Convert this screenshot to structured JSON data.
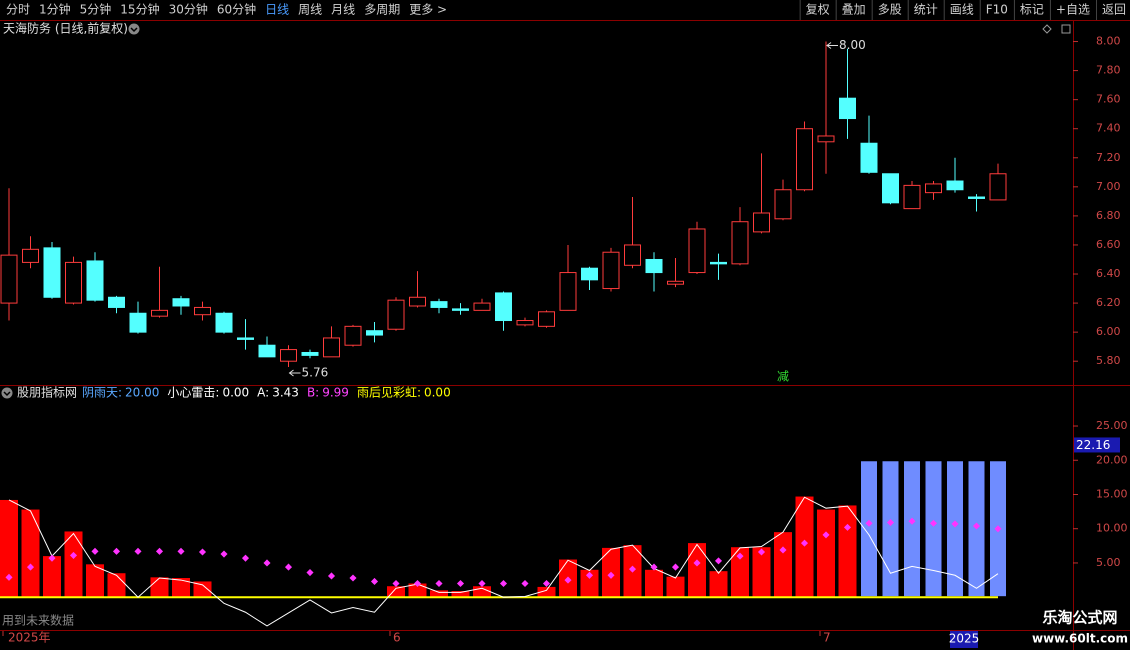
{
  "toolbar": {
    "left": [
      "分时",
      "1分钟",
      "5分钟",
      "15分钟",
      "30分钟",
      "60分钟",
      "日线",
      "周线",
      "月线",
      "多周期",
      "更多 >"
    ],
    "active_index": 6,
    "right": [
      "复权",
      "叠加",
      "多股",
      "统计",
      "画线",
      "F10",
      "标记",
      "+自选",
      "返回"
    ]
  },
  "stock_title": "天海防务 (日线,前复权)",
  "signal": "减",
  "indicator_title": "股朋指标网",
  "indicator_legend": [
    {
      "label": "阴雨天:",
      "value": "20.00",
      "color": "#5aa8ff"
    },
    {
      "label": "小心雷击:",
      "value": "0.00",
      "color": "#ffffff"
    },
    {
      "label": "A:",
      "value": "3.43",
      "color": "#ffffff"
    },
    {
      "label": "B:",
      "value": "9.99",
      "color": "#ff44ff"
    },
    {
      "label": "雨后见彩虹:",
      "value": "0.00",
      "color": "#ffff00"
    }
  ],
  "future_note": "用到未来数据",
  "cursor_date": "2025",
  "watermark": {
    "name": "乐淘公式网",
    "url": "www.60lt.com"
  },
  "chart_data": [
    {
      "type": "candlestick",
      "up_color": "#ff3c3c",
      "down_color": "#54ffff",
      "categories": [
        "2025年",
        null,
        null,
        null,
        null,
        null,
        null,
        null,
        null,
        null,
        null,
        null,
        null,
        null,
        null,
        null,
        null,
        null,
        "6",
        null,
        null,
        null,
        null,
        null,
        null,
        null,
        null,
        null,
        null,
        null,
        null,
        null,
        null,
        null,
        null,
        null,
        null,
        null,
        "7",
        null,
        null,
        null,
        null,
        null,
        null,
        null,
        null
      ],
      "open": [
        6.2,
        6.48,
        6.58,
        6.2,
        6.49,
        6.24,
        6.13,
        6.11,
        6.23,
        6.12,
        6.13,
        5.96,
        5.91,
        5.8,
        5.86,
        5.83,
        5.91,
        6.01,
        6.02,
        6.18,
        6.21,
        6.16,
        6.15,
        6.27,
        6.05,
        6.04,
        6.15,
        6.44,
        6.3,
        6.46,
        6.5,
        6.33,
        6.41,
        6.48,
        6.47,
        6.69,
        6.78,
        6.98,
        7.31,
        7.61,
        7.3,
        7.09,
        6.85,
        6.96,
        7.04,
        6.93,
        6.91
      ],
      "high": [
        6.99,
        6.66,
        6.62,
        6.52,
        6.55,
        6.25,
        6.21,
        6.45,
        6.25,
        6.21,
        6.14,
        6.09,
        5.97,
        5.91,
        5.88,
        6.04,
        6.05,
        6.07,
        6.24,
        6.42,
        6.23,
        6.2,
        6.23,
        6.28,
        6.1,
        6.15,
        6.6,
        6.45,
        6.58,
        6.93,
        6.55,
        6.51,
        6.76,
        6.54,
        6.86,
        7.23,
        7.05,
        7.45,
        8.0,
        7.95,
        7.49,
        7.09,
        7.04,
        7.04,
        7.2,
        6.95,
        7.16
      ],
      "low": [
        6.08,
        6.44,
        6.23,
        6.19,
        6.21,
        6.13,
        5.99,
        6.1,
        6.12,
        6.08,
        5.99,
        5.88,
        5.83,
        5.76,
        5.82,
        5.83,
        5.9,
        5.93,
        6.01,
        6.17,
        6.13,
        6.12,
        6.15,
        6.01,
        6.04,
        6.03,
        6.15,
        6.29,
        6.28,
        6.44,
        6.28,
        6.31,
        6.4,
        6.36,
        6.46,
        6.68,
        6.77,
        6.97,
        7.09,
        7.33,
        7.09,
        6.88,
        6.85,
        6.91,
        6.96,
        6.83,
        6.91
      ],
      "close": [
        6.53,
        6.57,
        6.24,
        6.48,
        6.22,
        6.17,
        6.0,
        6.15,
        6.18,
        6.17,
        6.0,
        5.95,
        5.83,
        5.88,
        5.84,
        5.96,
        6.04,
        5.98,
        6.22,
        6.24,
        6.17,
        6.15,
        6.2,
        6.08,
        6.08,
        6.14,
        6.41,
        6.36,
        6.55,
        6.6,
        6.41,
        6.35,
        6.71,
        6.47,
        6.76,
        6.82,
        6.98,
        7.4,
        7.35,
        7.47,
        7.1,
        6.89,
        7.01,
        7.02,
        6.98,
        6.92,
        7.09
      ],
      "ylim": [
        5.65,
        8.1
      ],
      "yticks": [
        {
          "value": 5.8,
          "label": "5.80"
        },
        {
          "value": 6.0,
          "label": "6.00"
        },
        {
          "value": 6.2,
          "label": "6.20"
        },
        {
          "value": 6.4,
          "label": "6.40"
        },
        {
          "value": 6.6,
          "label": "6.60"
        },
        {
          "value": 6.8,
          "label": "6.80"
        },
        {
          "value": 7.0,
          "label": "7.00"
        },
        {
          "value": 7.2,
          "label": "7.20"
        },
        {
          "value": 7.4,
          "label": "7.40"
        },
        {
          "value": 7.6,
          "label": "7.60"
        },
        {
          "value": 7.8,
          "label": "7.80"
        },
        {
          "value": 8.0,
          "label": "8.00"
        }
      ],
      "annotations": [
        {
          "value": 8.0,
          "label": "8.00",
          "at": "high"
        },
        {
          "value": 5.76,
          "label": "5.76",
          "at": "low"
        }
      ]
    },
    {
      "type": "indicator",
      "ylim": [
        -4.5,
        28.8
      ],
      "yticks": [
        {
          "value": 5,
          "label": "5.00"
        },
        {
          "value": 10,
          "label": "10.00"
        },
        {
          "value": 15,
          "label": "15.00"
        },
        {
          "value": 20,
          "label": "20.00"
        },
        {
          "value": 25,
          "label": "25.00"
        }
      ],
      "cursor": {
        "value": 22.16,
        "label": "22.16"
      },
      "series": [
        {
          "style": "bar",
          "color": "#ff0000",
          "values": [
            14.2,
            12.8,
            6.0,
            9.6,
            4.8,
            3.5,
            null,
            2.9,
            2.8,
            2.3,
            null,
            null,
            null,
            null,
            null,
            null,
            null,
            null,
            1.6,
            2.0,
            1.0,
            0.9,
            1.6,
            null,
            null,
            1.5,
            5.5,
            4.0,
            7.2,
            7.6,
            4.0,
            3.0,
            7.9,
            3.8,
            7.3,
            7.3,
            9.5,
            14.7,
            12.8,
            13.4,
            null,
            null,
            null,
            null,
            null,
            null,
            null
          ]
        },
        {
          "name": "阴雨天",
          "style": "bar",
          "color": "#6f8cff",
          "values": [
            null,
            null,
            null,
            null,
            null,
            null,
            null,
            null,
            null,
            null,
            null,
            null,
            null,
            null,
            null,
            null,
            null,
            null,
            null,
            null,
            null,
            null,
            null,
            null,
            null,
            null,
            null,
            null,
            null,
            null,
            null,
            null,
            null,
            null,
            null,
            null,
            null,
            null,
            null,
            null,
            20,
            20,
            20,
            20,
            20,
            20,
            20
          ]
        },
        {
          "name": "雨后见彩虹",
          "style": "line",
          "color": "#ffff00",
          "width": 2,
          "values": [
            0,
            0,
            0,
            0,
            0,
            0,
            0,
            0,
            0,
            0,
            0,
            0,
            0,
            0,
            0,
            0,
            0,
            0,
            0,
            0,
            0,
            0,
            0,
            0,
            0,
            0,
            0,
            0,
            0,
            0,
            0,
            0,
            0,
            0,
            0,
            0,
            0,
            0,
            0,
            0,
            0,
            0,
            0,
            0,
            0,
            0,
            0
          ]
        },
        {
          "name": "A",
          "style": "line",
          "color": "#ffffff",
          "width": 1,
          "values": [
            14.2,
            12.6,
            6.0,
            9.3,
            4.5,
            3.2,
            0,
            2.8,
            2.5,
            1.8,
            -0.9,
            -2.2,
            -4.2,
            -2.3,
            -0.4,
            -2.3,
            -1.5,
            -2.2,
            1.3,
            1.9,
            0.7,
            0.7,
            1.3,
            0,
            0.1,
            1.0,
            5.4,
            3.9,
            7.0,
            7.6,
            4.2,
            2.8,
            7.7,
            3.5,
            7.2,
            7.4,
            9.5,
            14.6,
            13.0,
            13.3,
            9.1,
            3.5,
            4.5,
            3.9,
            3.2,
            1.3,
            3.43
          ]
        },
        {
          "name": "B",
          "style": "dot",
          "color": "#ff33ff",
          "values": [
            2.9,
            4.4,
            5.7,
            6.1,
            6.7,
            6.7,
            6.7,
            6.7,
            6.7,
            6.6,
            6.3,
            5.7,
            5.0,
            4.4,
            3.6,
            3.1,
            2.8,
            2.3,
            2.0,
            2.0,
            2.0,
            2.0,
            2.0,
            2.0,
            2.0,
            2.0,
            2.5,
            3.2,
            3.2,
            4.1,
            4.4,
            4.4,
            5.0,
            5.3,
            6.0,
            6.6,
            6.9,
            7.9,
            9.1,
            10.2,
            10.8,
            10.9,
            11.1,
            10.8,
            10.7,
            10.4,
            9.99
          ]
        }
      ]
    }
  ]
}
